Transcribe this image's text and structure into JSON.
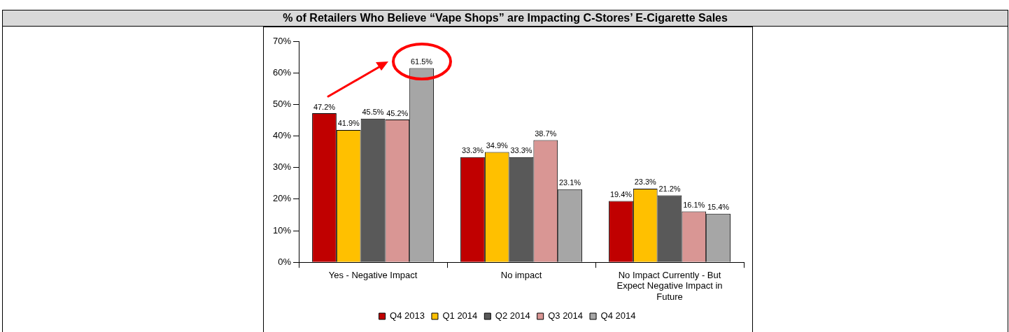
{
  "chart_data": {
    "type": "bar",
    "title": "% of Retailers Who Believe “Vape Shops” are Impacting C-Stores’ E-Cigarette Sales",
    "categories": [
      "Yes - Negative Impact",
      "No impact",
      "No Impact Currently - But Expect Negative Impact in Future"
    ],
    "series": [
      {
        "name": "Q4 2013",
        "color": "#c00000",
        "values": [
          47.2,
          33.3,
          19.4
        ],
        "value_labels": [
          "47.2%",
          "33.3%",
          "19.4%"
        ]
      },
      {
        "name": "Q1 2014",
        "color": "#ffc000",
        "values": [
          41.9,
          34.9,
          23.3
        ],
        "value_labels": [
          "41.9%",
          "34.9%",
          "23.3%"
        ]
      },
      {
        "name": "Q2 2014",
        "color": "#595959",
        "values": [
          45.5,
          33.3,
          21.2
        ],
        "value_labels": [
          "45.5%",
          "33.3%",
          "21.2%"
        ]
      },
      {
        "name": "Q3 2014",
        "color": "#d99694",
        "values": [
          45.2,
          38.7,
          16.1
        ],
        "value_labels": [
          "45.2%",
          "38.7%",
          "16.1%"
        ]
      },
      {
        "name": "Q4 2014",
        "color": "#a6a6a6",
        "values": [
          61.5,
          23.1,
          15.4
        ],
        "value_labels": [
          "61.5%",
          "23.1%",
          "15.4%"
        ]
      }
    ],
    "ylim": [
      0,
      70
    ],
    "yticks": [
      {
        "value": 0,
        "label": "0%"
      },
      {
        "value": 10,
        "label": "10%"
      },
      {
        "value": 20,
        "label": "20%"
      },
      {
        "value": 30,
        "label": "30%"
      },
      {
        "value": 40,
        "label": "40%"
      },
      {
        "value": 50,
        "label": "50%"
      },
      {
        "value": 60,
        "label": "60%"
      },
      {
        "value": 70,
        "label": "70%"
      }
    ],
    "grid": false,
    "legend": "bottom"
  }
}
